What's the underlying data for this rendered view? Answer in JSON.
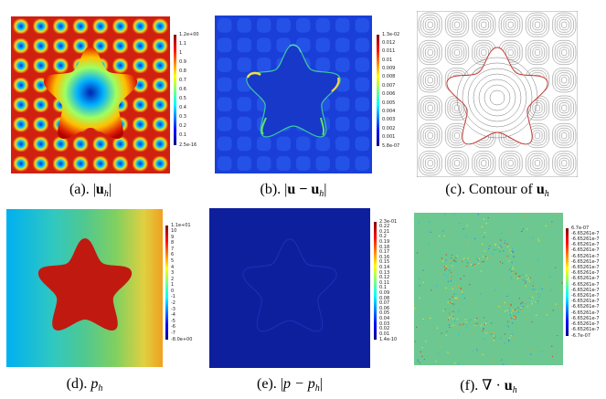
{
  "panels": [
    {
      "caption_prefix": "(a). |",
      "caption_bold": "u",
      "caption_sub": "h",
      "caption_suffix": "|",
      "colorbar_labels": [
        "1.2e+00",
        "1.1",
        "1",
        "0.9",
        "0.8",
        "0.7",
        "0.6",
        "0.5",
        "0.4",
        "0.3",
        "0.2",
        "0.1",
        "2.5e-16"
      ]
    },
    {
      "caption_prefix": "(b). |",
      "caption_bold": "u − u",
      "caption_sub": "h",
      "caption_suffix": "|",
      "colorbar_labels": [
        "1.3e-02",
        "0.012",
        "0.011",
        "0.01",
        "0.009",
        "0.008",
        "0.007",
        "0.006",
        "0.005",
        "0.004",
        "0.003",
        "0.002",
        "0.001",
        "5.8e-07"
      ]
    },
    {
      "caption_prefix": "(c). Contour of ",
      "caption_bold": "u",
      "caption_sub": "h",
      "caption_suffix": ""
    },
    {
      "caption_prefix": "(d). ",
      "caption_italic": "p",
      "caption_sub": "h",
      "caption_suffix": "",
      "colorbar_labels": [
        "1.1e+01",
        "10",
        "9",
        "8",
        "7",
        "6",
        "5",
        "4",
        "3",
        "2",
        "1",
        "0",
        "-1",
        "-2",
        "-3",
        "-4",
        "-5",
        "-6",
        "-7",
        "-8.0e+00"
      ]
    },
    {
      "caption_prefix": "(e). |",
      "caption_italic": "p − p",
      "caption_sub": "h",
      "caption_suffix": "|",
      "colorbar_labels": [
        "2.3e-01",
        "0.22",
        "0.21",
        "0.2",
        "0.19",
        "0.18",
        "0.17",
        "0.16",
        "0.15",
        "0.14",
        "0.13",
        "0.12",
        "0.11",
        "0.1",
        "0.09",
        "0.08",
        "0.07",
        "0.06",
        "0.05",
        "0.04",
        "0.03",
        "0.02",
        "0.01",
        "1.4e-10"
      ]
    },
    {
      "caption_prefix": "(f). ∇ · ",
      "caption_bold": "u",
      "caption_sub": "h",
      "caption_suffix": "",
      "colorbar_labels": [
        "6.7e-07",
        "-6.65261e-7",
        "-6.65261e-7",
        "-6.65261e-7",
        "-6.65261e-7",
        "-6.65261e-7",
        "-6.65261e-7",
        "-6.65261e-7",
        "-6.65261e-7",
        "-6.65261e-7",
        "-6.65261e-7",
        "-6.65261e-7",
        "-6.65261e-7",
        "-6.65261e-7",
        "-6.65261e-7",
        "-6.65261e-7",
        "-6.65261e-7",
        "-6.65261e-7",
        "-6.65261e-7",
        "-6.7e-07"
      ]
    }
  ]
}
